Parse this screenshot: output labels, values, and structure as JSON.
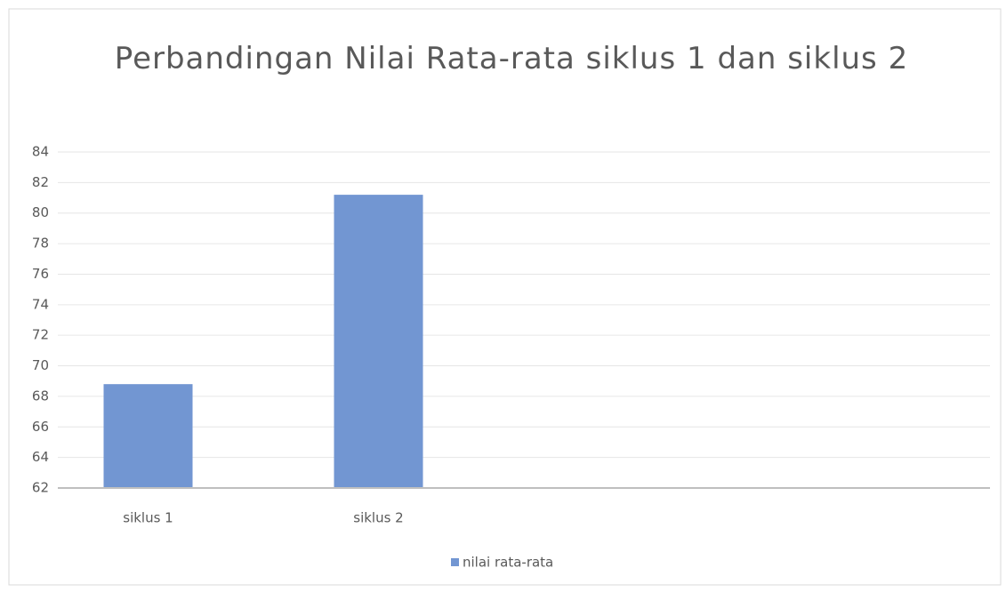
{
  "chart_data": {
    "type": "bar",
    "title": "Perbandingan  Nilai Rata-rata siklus 1 dan siklus 2",
    "categories": [
      "siklus 1",
      "siklus 2",
      null,
      null
    ],
    "series": [
      {
        "name": "nilai rata-rata",
        "color": "#7296d2",
        "values": [
          68.8,
          81.2,
          null,
          null
        ]
      }
    ],
    "ylim": [
      62,
      84
    ],
    "yticks": [
      62,
      64,
      66,
      68,
      70,
      72,
      74,
      76,
      78,
      80,
      82,
      84
    ],
    "grid": true,
    "legend": "bottom"
  }
}
